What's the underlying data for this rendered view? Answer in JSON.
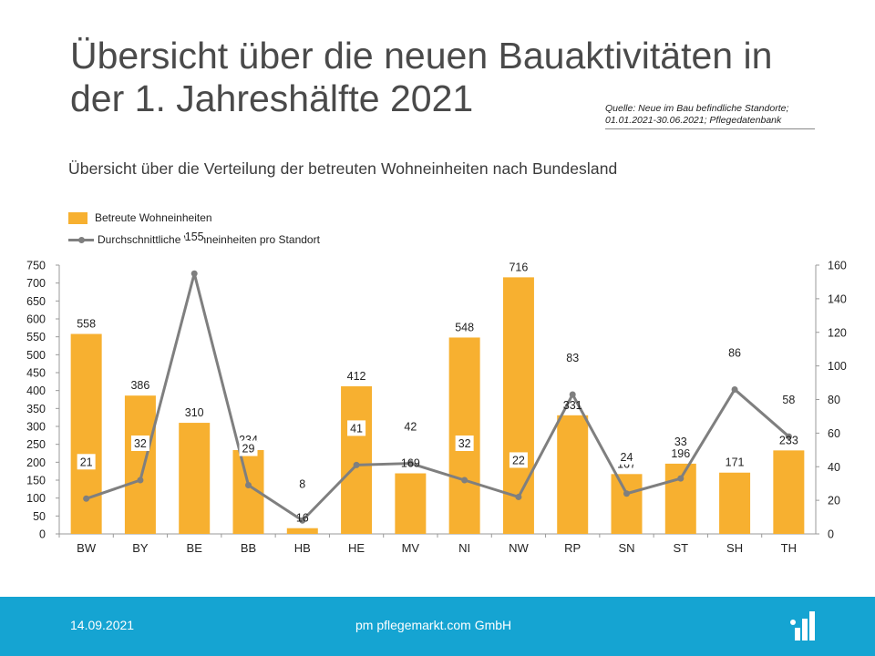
{
  "header": {
    "title_line1": "Übersicht über die neuen Bauaktivitäten in",
    "title_line2": "der 1. Jahreshälfte 2021",
    "source_line1": "Quelle: Neue im Bau befindliche Standorte;",
    "source_line2": "01.01.2021-30.06.2021; Pflegedatenbank"
  },
  "subtitle": "Übersicht über die Verteilung der betreuten Wohneinheiten nach Bundesland",
  "footer": {
    "date": "14.09.2021",
    "company": "pm pflegemarkt.com GmbH",
    "logo_icon": "pflegemarkt-logo-icon"
  },
  "colors": {
    "bar": "#f7b030",
    "line": "#7f7f7f",
    "footer": "#15a4d2"
  },
  "chart_data": {
    "type": "bar",
    "categories": [
      "BW",
      "BY",
      "BE",
      "BB",
      "HB",
      "HE",
      "MV",
      "NI",
      "NW",
      "RP",
      "SN",
      "ST",
      "SH",
      "TH"
    ],
    "series": [
      {
        "name": "Betreute Wohneinheiten",
        "type": "bar",
        "axis": "left",
        "values": [
          558,
          386,
          310,
          234,
          16,
          412,
          169,
          548,
          716,
          331,
          167,
          196,
          171,
          233
        ]
      },
      {
        "name": "Durchschnittliche Wohneinheiten pro Standort",
        "type": "line",
        "axis": "right",
        "values": [
          21,
          32,
          155,
          29,
          8,
          41,
          42,
          32,
          22,
          83,
          24,
          33,
          86,
          58
        ]
      }
    ],
    "y_left": {
      "min": 0,
      "max": 750,
      "ticks": [
        0,
        50,
        100,
        150,
        200,
        250,
        300,
        350,
        400,
        450,
        500,
        550,
        600,
        650,
        700,
        750
      ]
    },
    "y_right": {
      "min": 0,
      "max": 160,
      "ticks": [
        0,
        20,
        40,
        60,
        80,
        100,
        120,
        140,
        160
      ]
    },
    "legend_position": "top-left",
    "grid": false
  }
}
